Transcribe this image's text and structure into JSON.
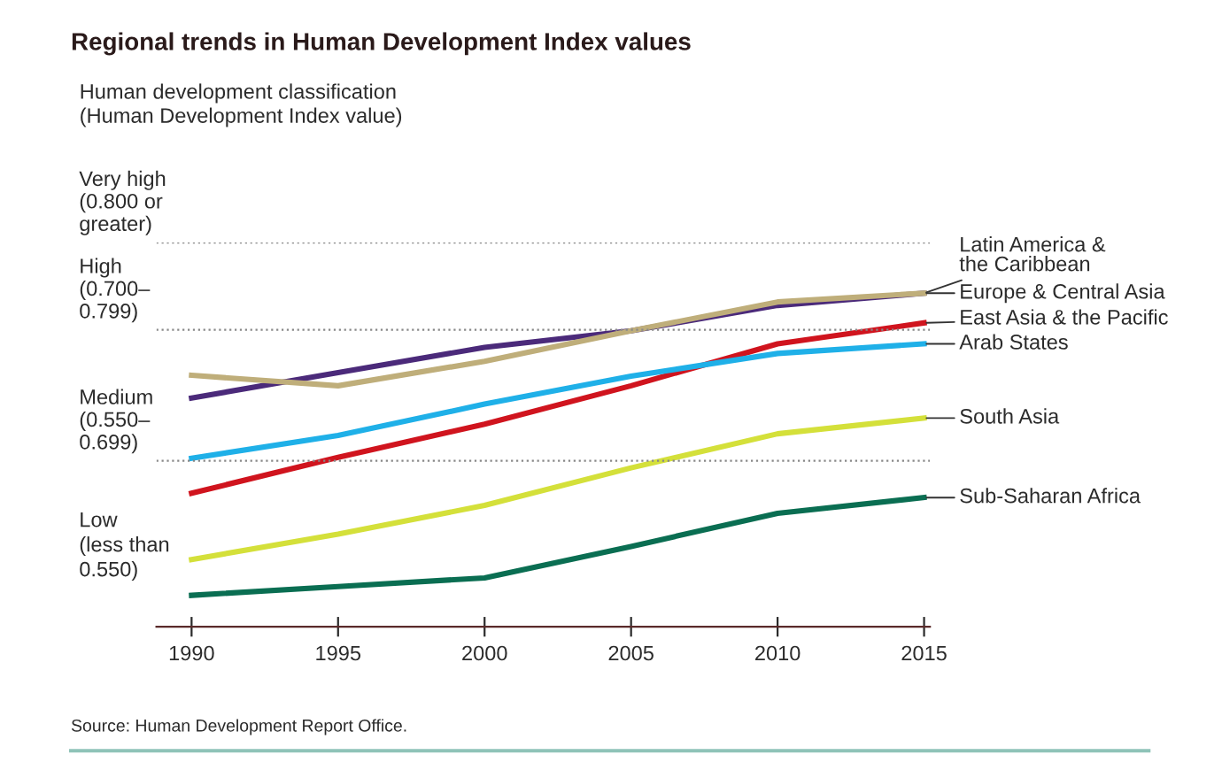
{
  "chart_data": {
    "type": "line",
    "title": "Regional trends in Human Development Index values",
    "subtitle": "Human development classification\n(Human Development Index value)",
    "x": [
      1990,
      1995,
      2000,
      2005,
      2010,
      2015
    ],
    "xlim": [
      1988.8,
      2015.2
    ],
    "xticks": [
      1990,
      1995,
      2000,
      2005,
      2010,
      2015
    ],
    "ylim": [
      0.36,
      0.8
    ],
    "tick_labels": "x",
    "grid": false,
    "legend": false,
    "line_style": "solid",
    "marker": "none",
    "series": [
      {
        "name": "Europe & Central Asia",
        "color": "#4b2a7a",
        "values": [
          0.622,
          0.651,
          0.68,
          0.699,
          0.728,
          0.742
        ]
      },
      {
        "name": "Latin America &\nthe Caribbean",
        "color": "#bfae7a",
        "values": [
          0.648,
          0.636,
          0.664,
          0.699,
          0.732,
          0.742
        ]
      },
      {
        "name": "East Asia & the Pacific",
        "color": "#d0141e",
        "values": [
          0.513,
          0.554,
          0.592,
          0.636,
          0.684,
          0.708
        ]
      },
      {
        "name": "Arab States",
        "color": "#1fb0e8",
        "values": [
          0.553,
          0.579,
          0.615,
          0.647,
          0.673,
          0.684
        ]
      },
      {
        "name": "South Asia",
        "color": "#d4e03a",
        "values": [
          0.437,
          0.466,
          0.499,
          0.542,
          0.581,
          0.599
        ]
      },
      {
        "name": "Sub-Saharan Africa",
        "color": "#0a6e52",
        "values": [
          0.396,
          0.406,
          0.416,
          0.452,
          0.49,
          0.508
        ]
      }
    ],
    "ref_lines": [
      {
        "axis": "y",
        "value": 0.8,
        "line_style": "dotted",
        "color": "#888888",
        "label": "Very high\n(0.800 or\ngreater)"
      },
      {
        "axis": "y",
        "value": 0.7,
        "line_style": "dotted",
        "color": "#888888",
        "label": "High\n(0.700–\n0.799)"
      },
      {
        "axis": "y",
        "value": 0.55,
        "line_style": "dotted",
        "color": "#888888",
        "label": "Medium\n(0.550–\n0.699)"
      }
    ],
    "annotations": [
      "Low\n(less than\n0.550)",
      "Source: Human Development Report Office."
    ]
  }
}
